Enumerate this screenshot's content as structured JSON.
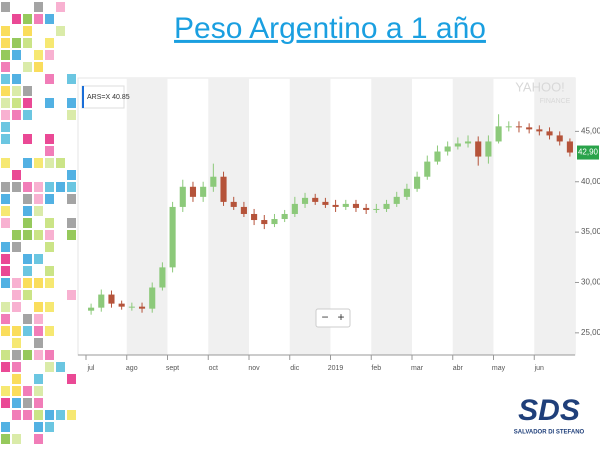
{
  "chart_data": {
    "type": "candlestick",
    "title": "Peso Argentino a 1 año",
    "symbol_label": "ARS=X 40.85",
    "watermark": [
      "YAHOO!",
      "FINANCE"
    ],
    "price_tag": {
      "value": 42.9,
      "label": "42,90"
    },
    "zoom": [
      "−",
      "+"
    ],
    "categories": [
      "jul",
      "ago",
      "sept",
      "oct",
      "nov",
      "dic",
      "2019",
      "feb",
      "mar",
      "abr",
      "may",
      "jun"
    ],
    "open": [
      27.2,
      27.5,
      28.8,
      27.9,
      27.6,
      27.6,
      27.4,
      29.5,
      31.5,
      37.5,
      39.5,
      38.5,
      39.5,
      40.5,
      38.0,
      37.5,
      36.8,
      36.2,
      35.8,
      36.3,
      36.8,
      37.8,
      38.4,
      38.0,
      37.7,
      37.5,
      37.8,
      37.4,
      37.2,
      37.3,
      37.8,
      38.5,
      39.3,
      40.5,
      42.0,
      43.0,
      43.5,
      43.8,
      44.0,
      42.5,
      44.0,
      45.5,
      45.5,
      45.4,
      45.2,
      45.0,
      44.6,
      44.0
    ],
    "high": [
      27.9,
      29.3,
      29.2,
      28.2,
      28.0,
      28.0,
      30.0,
      32.0,
      38.0,
      40.2,
      40.0,
      40.0,
      41.8,
      41.0,
      38.5,
      38.0,
      37.3,
      36.7,
      36.8,
      37.2,
      38.5,
      38.9,
      38.8,
      38.4,
      38.2,
      38.2,
      38.2,
      37.8,
      37.8,
      38.2,
      39.0,
      39.8,
      41.0,
      42.6,
      43.6,
      44.0,
      44.4,
      44.6,
      44.5,
      44.6,
      46.7,
      46.0,
      46.0,
      45.8,
      45.6,
      45.4,
      45.0,
      44.3
    ],
    "low": [
      26.8,
      27.1,
      27.5,
      27.3,
      27.2,
      27.0,
      27.0,
      29.2,
      31.0,
      37.0,
      38.0,
      38.0,
      39.0,
      37.6,
      37.2,
      36.5,
      35.7,
      35.3,
      35.5,
      36.0,
      36.5,
      37.4,
      37.7,
      37.4,
      37.0,
      37.2,
      37.0,
      36.8,
      36.9,
      37.0,
      37.5,
      38.2,
      39.0,
      40.2,
      41.7,
      42.6,
      43.2,
      43.4,
      41.6,
      41.8,
      43.8,
      45.0,
      44.9,
      44.8,
      44.6,
      44.2,
      43.6,
      42.5
    ],
    "close": [
      27.5,
      28.8,
      27.9,
      27.6,
      27.6,
      27.4,
      29.5,
      31.5,
      37.5,
      39.5,
      38.5,
      39.5,
      40.5,
      38.0,
      37.5,
      36.8,
      36.2,
      35.8,
      36.3,
      36.8,
      37.8,
      38.4,
      38.0,
      37.7,
      37.5,
      37.8,
      37.4,
      37.2,
      37.3,
      37.8,
      38.5,
      39.3,
      40.5,
      42.0,
      43.0,
      43.5,
      43.8,
      44.0,
      42.5,
      44.0,
      45.5,
      45.5,
      45.4,
      45.2,
      45.0,
      44.6,
      44.0,
      42.9
    ],
    "up_color": "#8cc97a",
    "down_color": "#b5533a",
    "ylim": [
      22.8,
      50.3
    ],
    "yticks": [
      {
        "value": 25,
        "label": "25,00"
      },
      {
        "value": 30,
        "label": "30,00"
      },
      {
        "value": 35,
        "label": "35,00"
      },
      {
        "value": 40,
        "label": "40,00"
      },
      {
        "value": 45,
        "label": "45,00"
      }
    ],
    "logo": {
      "name": "SDS",
      "subtitle": "SALVADOR DI STEFANO"
    }
  }
}
